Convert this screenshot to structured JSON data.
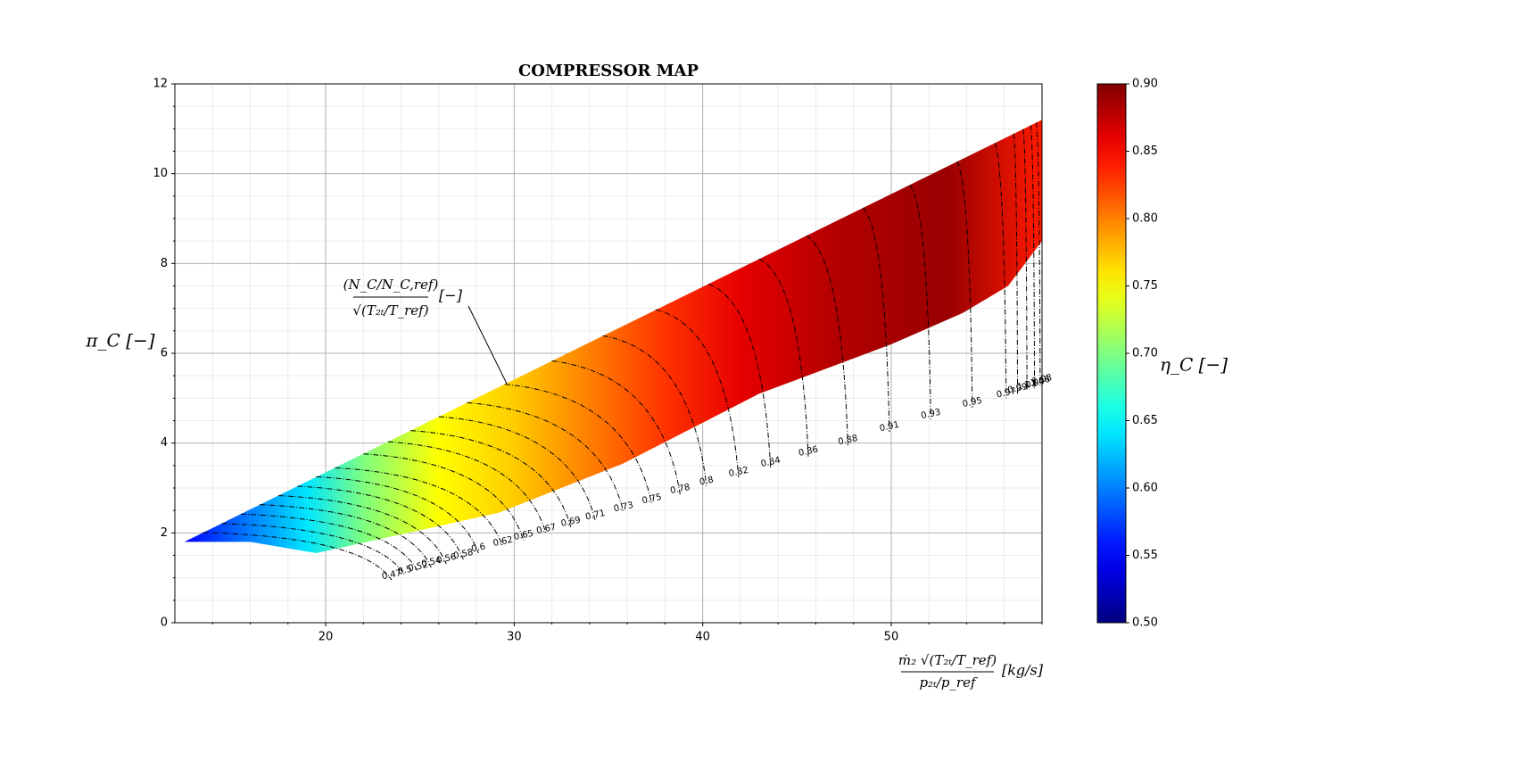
{
  "chart_data": {
    "type": "compressor_map",
    "title": "COMPRESSOR MAP",
    "x_label": {
      "numerator": "ṁ₂ √(T₂ₜ/T_ref)",
      "denominator": "p₂ₜ/p_ref",
      "unit": "[kg/s]"
    },
    "y_label": "π_C [−]",
    "annotation": {
      "numerator": "(N_C/N_C,ref)",
      "denominator": "√(T₂ₜ/T_ref)",
      "unit": "[−]"
    },
    "xlim": [
      12,
      58
    ],
    "ylim": [
      0,
      12
    ],
    "xticks": [
      20,
      30,
      40,
      50
    ],
    "yticks": [
      0,
      2,
      4,
      6,
      8,
      10,
      12
    ],
    "xminorticks": [
      14,
      16,
      18,
      22,
      24,
      26,
      28,
      32,
      34,
      36,
      38,
      42,
      44,
      46,
      48,
      52,
      54,
      56,
      58
    ],
    "yminorticks": [
      0.5,
      1,
      1.5,
      2.5,
      3,
      3.5,
      4.5,
      5,
      5.5,
      6.5,
      7,
      7.5,
      8.5,
      9,
      9.5,
      10.5,
      11,
      11.5
    ],
    "grid": true,
    "map_region": {
      "x": [
        12.5,
        58,
        58,
        56.2,
        53.8,
        50,
        43,
        35.8,
        29.2,
        19.5,
        16,
        12.5
      ],
      "y": [
        1.8,
        11.2,
        8.5,
        7.5,
        6.9,
        6.2,
        5.1,
        3.55,
        2.45,
        1.55,
        1.8,
        1.8
      ]
    },
    "efficiency_profile": {
      "x": [
        12.5,
        16,
        19,
        22,
        26,
        30,
        34,
        38,
        42,
        47,
        53,
        58
      ],
      "values": [
        0.55,
        0.6,
        0.64,
        0.7,
        0.75,
        0.77,
        0.8,
        0.83,
        0.86,
        0.88,
        0.89,
        0.84
      ]
    },
    "speed_lines": [
      {
        "name": "0.47",
        "x": [
          13.5,
          23.5
        ],
        "y": [
          2.01,
          0.95
        ]
      },
      {
        "name": "0.5",
        "x": [
          14.5,
          24.2
        ],
        "y": [
          2.21,
          1.05
        ]
      },
      {
        "name": "0.52",
        "x": [
          15.5,
          24.9
        ],
        "y": [
          2.42,
          1.13
        ]
      },
      {
        "name": "0.54",
        "x": [
          16.5,
          25.6
        ],
        "y": [
          2.63,
          1.23
        ]
      },
      {
        "name": "0.56",
        "x": [
          17.5,
          26.4
        ],
        "y": [
          2.83,
          1.31
        ]
      },
      {
        "name": "0.58",
        "x": [
          18.5,
          27.3
        ],
        "y": [
          3.04,
          1.41
        ]
      },
      {
        "name": "0.6",
        "x": [
          19.5,
          28.1
        ],
        "y": [
          3.25,
          1.55
        ]
      },
      {
        "name": "0.62",
        "x": [
          20.5,
          29.4
        ],
        "y": [
          3.45,
          1.69
        ]
      },
      {
        "name": "0.65",
        "x": [
          22,
          30.5
        ],
        "y": [
          3.76,
          1.83
        ]
      },
      {
        "name": "0.67",
        "x": [
          23.3,
          31.7
        ],
        "y": [
          4.03,
          1.97
        ]
      },
      {
        "name": "0.69",
        "x": [
          24.5,
          33
        ],
        "y": [
          4.28,
          2.13
        ]
      },
      {
        "name": "0.71",
        "x": [
          26,
          34.3
        ],
        "y": [
          4.59,
          2.28
        ]
      },
      {
        "name": "0.73",
        "x": [
          27.5,
          35.8
        ],
        "y": [
          4.9,
          2.46
        ]
      },
      {
        "name": "0.75",
        "x": [
          29.5,
          37.3
        ],
        "y": [
          5.31,
          2.64
        ]
      },
      {
        "name": "0.78",
        "x": [
          32,
          38.8
        ],
        "y": [
          5.83,
          2.86
        ]
      },
      {
        "name": "0.8",
        "x": [
          34.7,
          40.2
        ],
        "y": [
          6.39,
          3.04
        ]
      },
      {
        "name": "0.82",
        "x": [
          37.5,
          41.9
        ],
        "y": [
          6.97,
          3.24
        ]
      },
      {
        "name": "0.84",
        "x": [
          40.3,
          43.6
        ],
        "y": [
          7.54,
          3.46
        ]
      },
      {
        "name": "0.86",
        "x": [
          43,
          45.6
        ],
        "y": [
          8.1,
          3.7
        ]
      },
      {
        "name": "0.88",
        "x": [
          45.5,
          47.7
        ],
        "y": [
          8.62,
          3.95
        ]
      },
      {
        "name": "0.91",
        "x": [
          48.5,
          49.9
        ],
        "y": [
          9.24,
          4.25
        ]
      },
      {
        "name": "0.93",
        "x": [
          51,
          52.1
        ],
        "y": [
          9.75,
          4.53
        ]
      },
      {
        "name": "0.95",
        "x": [
          53.5,
          54.3
        ],
        "y": [
          10.27,
          4.79
        ]
      },
      {
        "name": "0.97",
        "x": [
          55.5,
          56.1
        ],
        "y": [
          10.68,
          5.0
        ]
      },
      {
        "name": "0.99",
        "x": [
          56.5,
          56.7
        ],
        "y": [
          10.89,
          5.1
        ]
      },
      {
        "name": "1.01",
        "x": [
          57,
          57.2
        ],
        "y": [
          10.99,
          5.17
        ]
      },
      {
        "name": "1.04",
        "x": [
          57.4,
          57.6
        ],
        "y": [
          11.08,
          5.22
        ]
      },
      {
        "name": "1.06",
        "x": [
          57.7,
          57.9
        ],
        "y": [
          11.14,
          5.26
        ]
      },
      {
        "name": "1.08",
        "x": [
          58,
          58
        ],
        "y": [
          11.2,
          5.3
        ]
      }
    ],
    "colorbar": {
      "label": "η_C [−]",
      "lim": [
        0.5,
        0.9
      ],
      "ticks": [
        {
          "value": 0.5,
          "label": "0.50"
        },
        0.55,
        {
          "value": 0.6,
          "label": "0.60"
        },
        0.65,
        {
          "value": 0.7,
          "label": "0.70"
        },
        0.75,
        {
          "value": 0.8,
          "label": "0.80"
        },
        0.85,
        {
          "value": 0.9,
          "label": "0.90"
        }
      ]
    }
  }
}
